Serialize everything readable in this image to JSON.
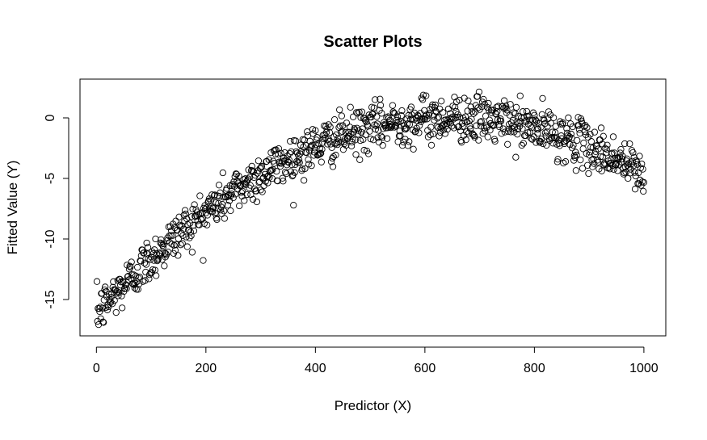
{
  "chart_data": {
    "type": "scatter",
    "title": "Scatter Plots",
    "xlabel": "Predictor (X)",
    "ylabel": "Fitted Value (Y)",
    "xlim": [
      -30,
      1040
    ],
    "ylim": [
      -18,
      3.2
    ],
    "x_ticks": [
      0,
      200,
      400,
      600,
      800,
      1000
    ],
    "y_ticks": [
      -15,
      -10,
      -5,
      0
    ],
    "grid": false,
    "legend": "none",
    "marker": "open-circle",
    "marker_color": "#000000",
    "n_points": 1000,
    "trend": {
      "form": "quadratic",
      "vertex_x": 650,
      "vertex_y": 0,
      "y_at_x0": -16.2
    },
    "noise_sd": 0.95
  }
}
